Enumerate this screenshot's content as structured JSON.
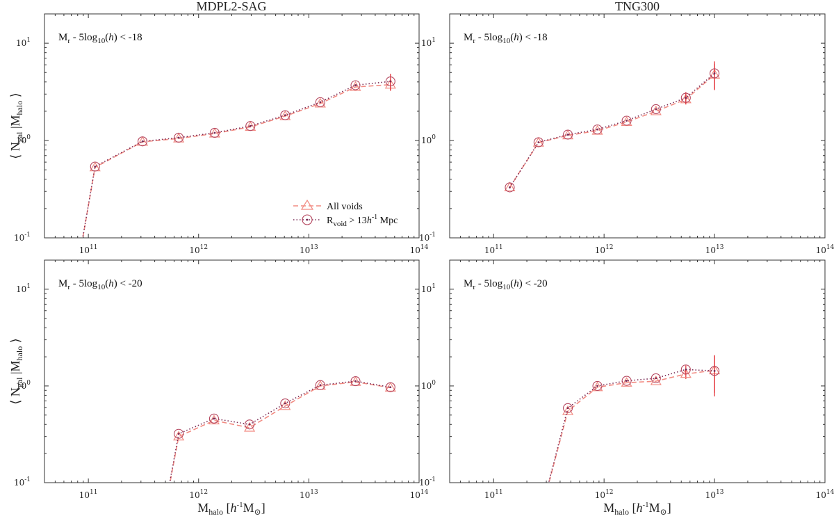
{
  "figure": {
    "column_titles": [
      "MDPL2-SAG",
      "TNG300"
    ],
    "xlabel": {
      "main": "M",
      "sub": "halo",
      "unit_open": " [",
      "unit_h": "h",
      "unit_sup": "-1",
      "unit_M": "M",
      "unit_sun": "⊙",
      "unit_close": "]"
    },
    "ylabel": {
      "lang": "⟨",
      "N": " N",
      "sub1": "gal",
      "mid": " |M",
      "sub2": "halo",
      "rang": " ⟩"
    },
    "legend": {
      "all_voids": "All voids",
      "rvoid_main": "R",
      "rvoid_sub": "void",
      "rvoid_gt": " > 13",
      "rvoid_h": "h",
      "rvoid_sup": "-1",
      "rvoid_mpc": " Mpc"
    },
    "colors": {
      "all_voids": "#f28b82",
      "rvoid": "#7a2b55",
      "errorbar": "#e4373c",
      "marker_edge": "#b5475f"
    }
  },
  "chart_data": [
    {
      "type": "line",
      "panel": "top-left",
      "title": "MDPL2-SAG",
      "annotation": {
        "pre": "M",
        "sub": "r",
        "mid": " - 5log",
        "sub10": "10",
        "h_open": "(",
        "h": "h",
        "h_close": ")",
        "cut": " < -18"
      },
      "xlim": [
        40000000000.0,
        100000000000000.0
      ],
      "ylim": [
        0.1,
        20
      ],
      "xticks": [
        {
          "value": 100000000000.0,
          "base": "10",
          "exp": "11"
        },
        {
          "value": 1000000000000.0,
          "base": "10",
          "exp": "12"
        },
        {
          "value": 10000000000000.0,
          "base": "10",
          "exp": "13"
        },
        {
          "value": 100000000000000.0,
          "base": "10",
          "exp": "14"
        }
      ],
      "yticks": [
        {
          "value": 0.1,
          "base": "10",
          "exp": "-1"
        },
        {
          "value": 1,
          "base": "10",
          "exp": "0"
        },
        {
          "value": 10,
          "base": "10",
          "exp": "1"
        }
      ],
      "legend": true,
      "series": [
        {
          "name": "All voids",
          "style": "dashed-triangle",
          "x": [
            80000000000.0,
            115000000000.0,
            310000000000.0,
            660000000000.0,
            1400000000000.0,
            2950000000000.0,
            6100000000000.0,
            12700000000000.0,
            26500000000000.0,
            55000000000000.0
          ],
          "y": [
            0.05,
            0.53,
            0.97,
            1.05,
            1.18,
            1.38,
            1.78,
            2.4,
            3.55,
            3.75
          ],
          "yerr": [
            0,
            0,
            0,
            0,
            0,
            0,
            0,
            0,
            0,
            0.5
          ]
        },
        {
          "name": "Rvoid > 13 h-1 Mpc",
          "style": "dotted-circle",
          "x": [
            80000000000.0,
            115000000000.0,
            310000000000.0,
            660000000000.0,
            1400000000000.0,
            2950000000000.0,
            6100000000000.0,
            12700000000000.0,
            26500000000000.0,
            55000000000000.0
          ],
          "y": [
            0.05,
            0.54,
            0.98,
            1.07,
            1.2,
            1.41,
            1.82,
            2.48,
            3.7,
            4.05
          ],
          "yerr": [
            0,
            0,
            0,
            0,
            0,
            0,
            0,
            0,
            0,
            0.8
          ]
        }
      ]
    },
    {
      "type": "line",
      "panel": "top-right",
      "title": "TNG300",
      "annotation": {
        "pre": "M",
        "sub": "r",
        "mid": " - 5log",
        "sub10": "10",
        "h_open": "(",
        "h": "h",
        "h_close": ")",
        "cut": " < -18"
      },
      "xlim": [
        40000000000.0,
        100000000000000.0
      ],
      "ylim": [
        0.1,
        20
      ],
      "xticks": [
        {
          "value": 100000000000.0,
          "base": "10",
          "exp": "11"
        },
        {
          "value": 1000000000000.0,
          "base": "10",
          "exp": "12"
        },
        {
          "value": 10000000000000.0,
          "base": "10",
          "exp": "13"
        },
        {
          "value": 100000000000000.0,
          "base": "10",
          "exp": "14"
        }
      ],
      "yticks": [
        {
          "value": 0.1,
          "base": "10",
          "exp": "-1"
        },
        {
          "value": 1,
          "base": "10",
          "exp": "0"
        },
        {
          "value": 10,
          "base": "10",
          "exp": "1"
        }
      ],
      "legend": false,
      "series": [
        {
          "name": "All voids",
          "style": "dashed-triangle",
          "x": [
            140000000000.0,
            255000000000.0,
            470000000000.0,
            870000000000.0,
            1600000000000.0,
            2950000000000.0,
            5500000000000.0,
            10000000000000.0
          ],
          "y": [
            0.33,
            0.95,
            1.13,
            1.26,
            1.55,
            2.0,
            2.65,
            4.75
          ],
          "yerr": [
            0,
            0,
            0,
            0,
            0,
            0,
            0.3,
            1.4
          ]
        },
        {
          "name": "Rvoid > 13 h-1 Mpc",
          "style": "dotted-circle",
          "x": [
            140000000000.0,
            255000000000.0,
            470000000000.0,
            870000000000.0,
            1600000000000.0,
            2950000000000.0,
            5500000000000.0,
            10000000000000.0
          ],
          "y": [
            0.33,
            0.96,
            1.15,
            1.3,
            1.6,
            2.1,
            2.75,
            4.9
          ],
          "yerr": [
            0,
            0,
            0,
            0,
            0,
            0,
            0.4,
            1.6
          ]
        }
      ]
    },
    {
      "type": "line",
      "panel": "bottom-left",
      "title": "",
      "annotation": {
        "pre": "M",
        "sub": "r",
        "mid": " - 5log",
        "sub10": "10",
        "h_open": "(",
        "h": "h",
        "h_close": ")",
        "cut": " < -20"
      },
      "xlim": [
        40000000000.0,
        100000000000000.0
      ],
      "ylim": [
        0.1,
        20
      ],
      "xticks": [
        {
          "value": 100000000000.0,
          "base": "10",
          "exp": "11"
        },
        {
          "value": 1000000000000.0,
          "base": "10",
          "exp": "12"
        },
        {
          "value": 10000000000000.0,
          "base": "10",
          "exp": "13"
        },
        {
          "value": 100000000000000.0,
          "base": "10",
          "exp": "14"
        }
      ],
      "yticks": [
        {
          "value": 0.1,
          "base": "10",
          "exp": "-1"
        },
        {
          "value": 1,
          "base": "10",
          "exp": "0"
        },
        {
          "value": 10,
          "base": "10",
          "exp": "1"
        }
      ],
      "legend": false,
      "series": [
        {
          "name": "All voids",
          "style": "dashed-triangle",
          "x": [
            450000000000.0,
            660000000000.0,
            1380000000000.0,
            2900000000000.0,
            6100000000000.0,
            12700000000000.0,
            26500000000000.0,
            55000000000000.0
          ],
          "y": [
            0.03,
            0.3,
            0.44,
            0.37,
            0.62,
            1.0,
            1.1,
            0.96
          ],
          "yerr": [
            0,
            0,
            0,
            0,
            0,
            0,
            0,
            0
          ]
        },
        {
          "name": "Rvoid > 13 h-1 Mpc",
          "style": "dotted-circle",
          "x": [
            450000000000.0,
            660000000000.0,
            1380000000000.0,
            2900000000000.0,
            6100000000000.0,
            12700000000000.0,
            26500000000000.0,
            55000000000000.0
          ],
          "y": [
            0.03,
            0.32,
            0.46,
            0.4,
            0.66,
            1.02,
            1.12,
            0.97
          ],
          "yerr": [
            0,
            0,
            0,
            0,
            0,
            0,
            0,
            0
          ]
        }
      ]
    },
    {
      "type": "line",
      "panel": "bottom-right",
      "title": "",
      "annotation": {
        "pre": "M",
        "sub": "r",
        "mid": " - 5log",
        "sub10": "10",
        "h_open": "(",
        "h": "h",
        "h_close": ")",
        "cut": " < -20"
      },
      "xlim": [
        40000000000.0,
        100000000000000.0
      ],
      "ylim": [
        0.1,
        20
      ],
      "xticks": [
        {
          "value": 100000000000.0,
          "base": "10",
          "exp": "11"
        },
        {
          "value": 1000000000000.0,
          "base": "10",
          "exp": "12"
        },
        {
          "value": 10000000000000.0,
          "base": "10",
          "exp": "13"
        },
        {
          "value": 100000000000000.0,
          "base": "10",
          "exp": "14"
        }
      ],
      "yticks": [
        {
          "value": 0.1,
          "base": "10",
          "exp": "-1"
        },
        {
          "value": 1,
          "base": "10",
          "exp": "0"
        },
        {
          "value": 10,
          "base": "10",
          "exp": "1"
        }
      ],
      "legend": false,
      "series": [
        {
          "name": "All voids",
          "style": "dashed-triangle",
          "x": [
            240000000000.0,
            470000000000.0,
            870000000000.0,
            1600000000000.0,
            2950000000000.0,
            5500000000000.0,
            10000000000000.0
          ],
          "y": [
            0.03,
            0.55,
            0.97,
            1.08,
            1.12,
            1.33,
            1.45
          ],
          "yerr": [
            0,
            0,
            0,
            0,
            0,
            0.15,
            0.6
          ]
        },
        {
          "name": "Rvoid > 13 h-1 Mpc",
          "style": "dotted-circle",
          "x": [
            240000000000.0,
            470000000000.0,
            870000000000.0,
            1600000000000.0,
            2950000000000.0,
            5500000000000.0,
            10000000000000.0
          ],
          "y": [
            0.03,
            0.59,
            1.0,
            1.13,
            1.2,
            1.48,
            1.43
          ],
          "yerr": [
            0,
            0,
            0,
            0,
            0,
            0.15,
            0.65
          ]
        }
      ]
    }
  ]
}
